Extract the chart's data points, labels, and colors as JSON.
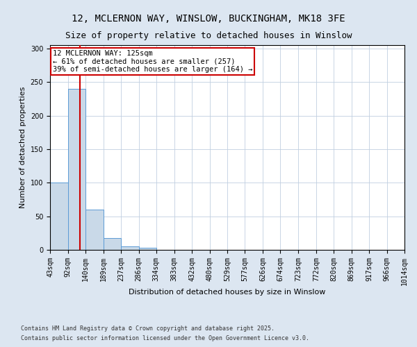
{
  "title1": "12, MCLERNON WAY, WINSLOW, BUCKINGHAM, MK18 3FE",
  "title2": "Size of property relative to detached houses in Winslow",
  "xlabel": "Distribution of detached houses by size in Winslow",
  "ylabel": "Number of detached properties",
  "bin_edges": [
    43,
    92,
    140,
    189,
    237,
    286,
    334,
    383,
    432,
    480,
    529,
    577,
    626,
    674,
    723,
    772,
    820,
    869,
    917,
    966,
    1014
  ],
  "bar_heights": [
    100,
    240,
    60,
    18,
    5,
    3,
    0,
    0,
    0,
    0,
    0,
    0,
    0,
    0,
    0,
    0,
    0,
    0,
    0,
    0
  ],
  "bar_color": "#c9d9e8",
  "bar_edge_color": "#5b9bd5",
  "property_size": 125,
  "property_line_color": "#cc0000",
  "annotation_text": "12 MCLERNON WAY: 125sqm\n← 61% of detached houses are smaller (257)\n39% of semi-detached houses are larger (164) →",
  "annotation_box_color": "#ffffff",
  "annotation_box_edge_color": "#cc0000",
  "ylim": [
    0,
    305
  ],
  "yticks": [
    0,
    50,
    100,
    150,
    200,
    250,
    300
  ],
  "background_color": "#dce6f1",
  "plot_bg_color": "#ffffff",
  "footer1": "Contains HM Land Registry data © Crown copyright and database right 2025.",
  "footer2": "Contains public sector information licensed under the Open Government Licence v3.0.",
  "title_fontsize": 10,
  "subtitle_fontsize": 9,
  "axis_label_fontsize": 8,
  "tick_fontsize": 7,
  "annotation_fontsize": 7.5,
  "footer_fontsize": 6
}
